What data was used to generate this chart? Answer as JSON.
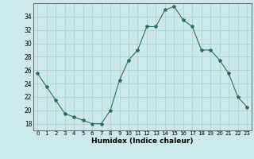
{
  "x": [
    0,
    1,
    2,
    3,
    4,
    5,
    6,
    7,
    8,
    9,
    10,
    11,
    12,
    13,
    14,
    15,
    16,
    17,
    18,
    19,
    20,
    21,
    22,
    23
  ],
  "y": [
    25.5,
    23.5,
    21.5,
    19.5,
    19.0,
    18.5,
    18.0,
    18.0,
    20.0,
    24.5,
    27.5,
    29.0,
    32.5,
    32.5,
    35.0,
    35.5,
    33.5,
    32.5,
    29.0,
    29.0,
    27.5,
    25.5,
    22.0,
    20.5
  ],
  "line_color": "#2e6b5e",
  "marker": "*",
  "marker_size": 3,
  "bg_color": "#cce8e8",
  "grid_color": "#aacccc",
  "xlabel": "Humidex (Indice chaleur)",
  "ylim": [
    17,
    36
  ],
  "xlim": [
    -0.5,
    23.5
  ],
  "yticks": [
    18,
    20,
    22,
    24,
    26,
    28,
    30,
    32,
    34
  ],
  "xticks": [
    0,
    1,
    2,
    3,
    4,
    5,
    6,
    7,
    8,
    9,
    10,
    11,
    12,
    13,
    14,
    15,
    16,
    17,
    18,
    19,
    20,
    21,
    22,
    23
  ],
  "xtick_labels": [
    "0",
    "1",
    "2",
    "3",
    "4",
    "5",
    "6",
    "7",
    "8",
    "9",
    "10",
    "11",
    "12",
    "13",
    "14",
    "15",
    "16",
    "17",
    "18",
    "19",
    "20",
    "21",
    "22",
    "23"
  ]
}
